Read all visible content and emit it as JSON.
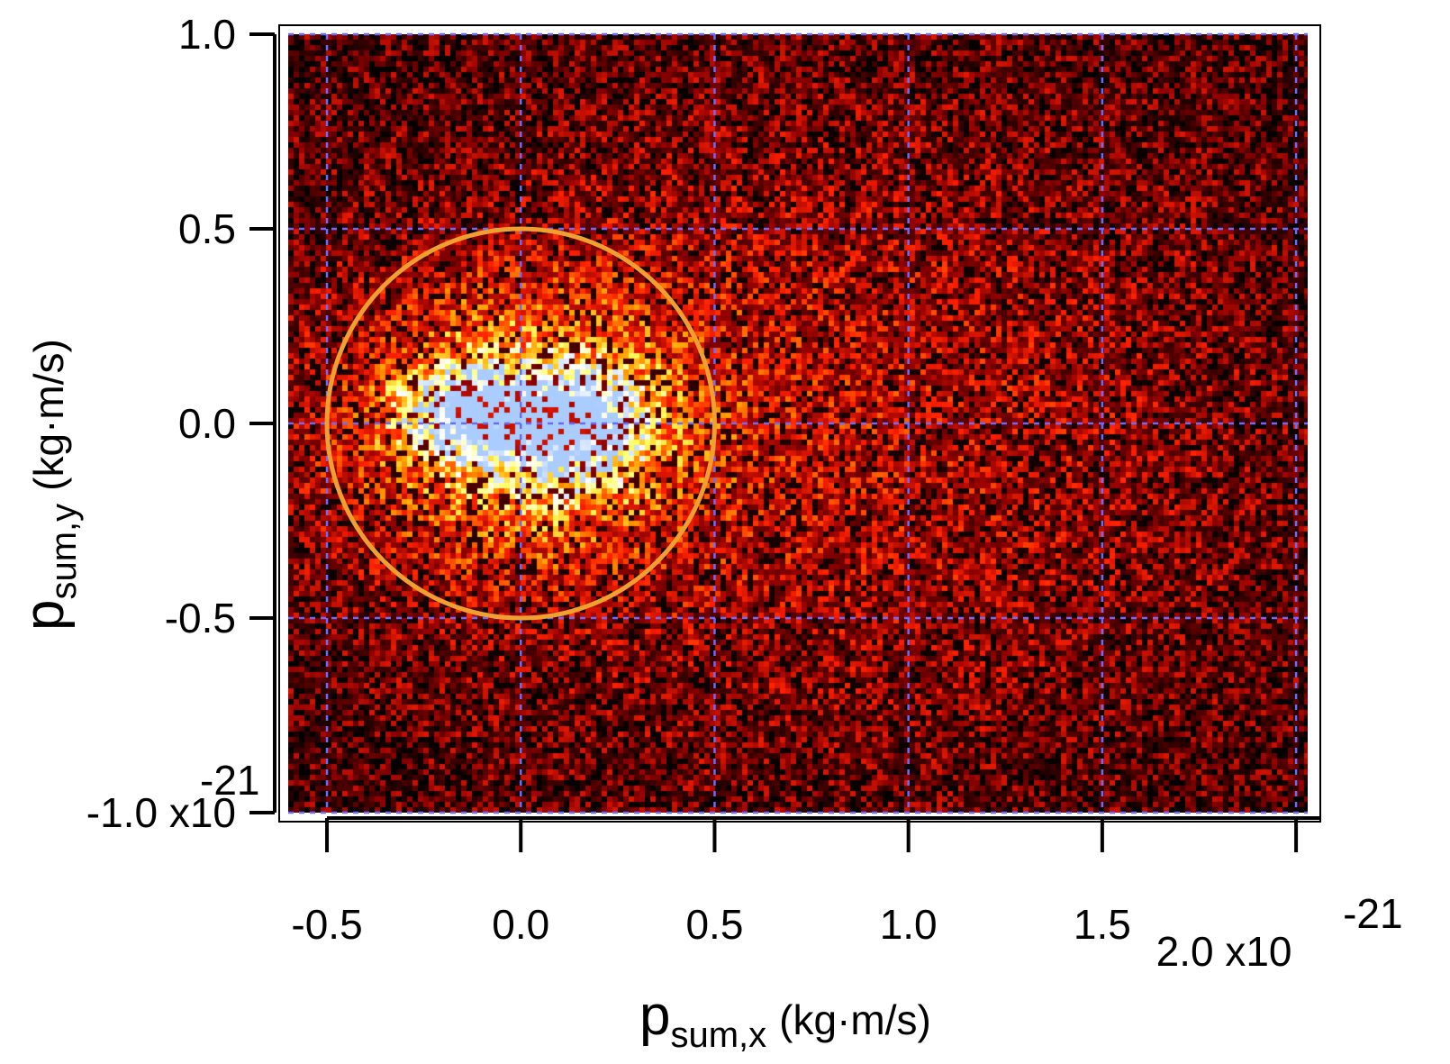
{
  "chart_data": {
    "type": "heatmap",
    "title": "",
    "xlabel": {
      "main": "p",
      "sub": "sum,x",
      "unit": "(kg·m/s)"
    },
    "ylabel": {
      "main": "p",
      "sub": "sum,y",
      "unit": "(kg·m/s)"
    },
    "xlim": [
      -0.6,
      2.03
    ],
    "ylim": [
      -1.0,
      1.0
    ],
    "scale_exponent": "-21",
    "x_ticks": [
      {
        "value": -0.5,
        "label": "-0.5"
      },
      {
        "value": 0.0,
        "label": "0.0"
      },
      {
        "value": 0.5,
        "label": "0.5"
      },
      {
        "value": 1.0,
        "label": "1.0"
      },
      {
        "value": 1.5,
        "label": "1.5"
      },
      {
        "value": 2.0,
        "label": "2.0 x10"
      }
    ],
    "y_ticks": [
      {
        "value": 1.0,
        "label": "1.0"
      },
      {
        "value": 0.5,
        "label": "0.5"
      },
      {
        "value": 0.0,
        "label": "0.0"
      },
      {
        "value": -0.5,
        "label": "-0.5"
      },
      {
        "value": -1.0,
        "label": "-1.0 x10"
      }
    ],
    "grid": true,
    "colormap": [
      "#000000",
      "#8b0000",
      "#ff2000",
      "#ffa000",
      "#ffff60",
      "#ffffff",
      "#aaccff"
    ],
    "hotspots": [
      {
        "x": -0.13,
        "y": 0.03,
        "peak": 1.0,
        "sx": 0.11,
        "sy": 0.07
      },
      {
        "x": 0.13,
        "y": -0.01,
        "peak": 1.0,
        "sx": 0.12,
        "sy": 0.09
      },
      {
        "x": 0.0,
        "y": 0.0,
        "peak": 0.55,
        "sx": 0.28,
        "sy": 0.22
      }
    ],
    "background_level": 0.2,
    "annotations": [
      {
        "type": "circle",
        "cx": 0.0,
        "cy": 0.0,
        "r": 0.5,
        "color": "#f0a030"
      }
    ],
    "colors": {
      "grid": "#6b6bff",
      "axis": "#000000",
      "frame": "#ffffff"
    }
  }
}
